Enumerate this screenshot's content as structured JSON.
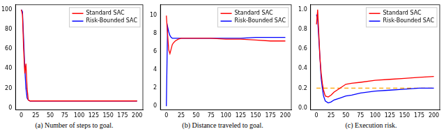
{
  "chart_data": [
    {
      "type": "line",
      "title": "(a) Number of steps to goal.",
      "xlim": [
        -10,
        210
      ],
      "xticks": [
        0,
        25,
        50,
        75,
        100,
        125,
        150,
        175,
        200
      ],
      "ylim": [
        -2,
        105
      ],
      "yticks": [
        0,
        20,
        40,
        60,
        80,
        100
      ],
      "grid": false,
      "legend": "upper right",
      "x": [
        0,
        2,
        4,
        6,
        8,
        10,
        12,
        15,
        20,
        25,
        30,
        40,
        50,
        60,
        75,
        100,
        125,
        150,
        175,
        200
      ],
      "series": [
        {
          "name": "Standard SAC",
          "color": "#ff0000",
          "values": [
            100,
            95,
            60,
            35,
            45,
            20,
            8,
            7,
            7,
            7,
            7,
            7,
            7,
            7,
            7,
            7,
            7,
            7,
            7,
            7
          ]
        },
        {
          "name": "Risk-Bounded SAC",
          "color": "#0000ff",
          "values": [
            100,
            98,
            70,
            40,
            20,
            10,
            8,
            7,
            7,
            7,
            7,
            7,
            7,
            7,
            7,
            7,
            7,
            7,
            7,
            7
          ]
        }
      ]
    },
    {
      "type": "line",
      "title": "(b) Distance traveled to goal.",
      "xlim": [
        -10,
        210
      ],
      "xticks": [
        0,
        25,
        50,
        75,
        100,
        125,
        150,
        175,
        200
      ],
      "ylim": [
        -0.4,
        11.2
      ],
      "yticks": [
        0,
        2,
        4,
        6,
        8,
        10
      ],
      "grid": false,
      "legend": "upper right",
      "x": [
        0,
        2,
        4,
        6,
        8,
        10,
        12,
        15,
        20,
        25,
        30,
        40,
        50,
        60,
        75,
        100,
        125,
        150,
        175,
        200
      ],
      "series": [
        {
          "name": "Standard SAC",
          "color": "#ff0000",
          "values": [
            10,
            8,
            6.2,
            5.8,
            6.3,
            6.8,
            7.0,
            7.2,
            7.4,
            7.5,
            7.5,
            7.5,
            7.5,
            7.5,
            7.5,
            7.4,
            7.4,
            7.3,
            7.2,
            7.2
          ]
        },
        {
          "name": "Risk-Bounded SAC",
          "color": "#0000ff",
          "values": [
            0,
            8.8,
            8.2,
            7.8,
            7.6,
            7.5,
            7.5,
            7.5,
            7.5,
            7.5,
            7.5,
            7.5,
            7.5,
            7.5,
            7.5,
            7.5,
            7.5,
            7.6,
            7.6,
            7.6
          ]
        }
      ]
    },
    {
      "type": "line",
      "title": "(c) Execution risk.",
      "xlim": [
        -10,
        210
      ],
      "xticks": [
        0,
        25,
        50,
        75,
        100,
        125,
        150,
        175,
        200
      ],
      "ylim": [
        -0.02,
        1.05
      ],
      "yticks": [
        {
          "value": 0,
          "label": "0.0"
        },
        0.2,
        0.4,
        0.6,
        0.8,
        {
          "value": 1,
          "label": "1.0"
        }
      ],
      "grid": false,
      "legend": "upper right",
      "x": [
        0,
        2,
        4,
        6,
        8,
        10,
        12,
        15,
        20,
        25,
        30,
        40,
        50,
        60,
        75,
        100,
        125,
        150,
        175,
        200
      ],
      "series": [
        {
          "name": "Standard SAC",
          "color": "#ff0000",
          "values": [
            0.85,
            1.0,
            0.75,
            0.5,
            0.35,
            0.25,
            0.18,
            0.12,
            0.11,
            0.13,
            0.16,
            0.2,
            0.24,
            0.25,
            0.26,
            0.28,
            0.29,
            0.3,
            0.31,
            0.32
          ]
        },
        {
          "name": "Risk-Bounded SAC",
          "color": "#0000ff",
          "values": [
            0.95,
            0.9,
            0.7,
            0.5,
            0.3,
            0.2,
            0.12,
            0.07,
            0.05,
            0.06,
            0.08,
            0.1,
            0.12,
            0.13,
            0.15,
            0.17,
            0.18,
            0.19,
            0.2,
            0.2
          ]
        },
        {
          "color": "#ffa500",
          "line_style": "dashed",
          "x": [
            0,
            200
          ],
          "values": [
            0.2,
            0.2
          ]
        }
      ]
    }
  ]
}
